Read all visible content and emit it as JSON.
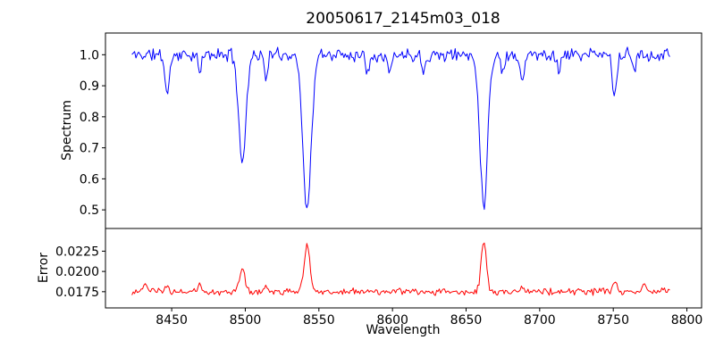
{
  "figure": {
    "background_color": "#ffffff",
    "axes_color": "#000000",
    "grid": false,
    "legend": "none"
  },
  "chart_data": [
    {
      "type": "line",
      "title": "20050617_2145m03_018",
      "xlabel": "Wavelength",
      "ylabel": "Spectrum",
      "line_color": "#0000ff",
      "xlim": [
        8405,
        8810
      ],
      "ylim": [
        0.44,
        1.07
      ],
      "x_range": [
        8423,
        8789
      ],
      "sample_step": 0.9,
      "xticks": [
        8450,
        8500,
        8550,
        8600,
        8650,
        8700,
        8750,
        8800
      ],
      "xtick_labels": [
        "8450",
        "8500",
        "8550",
        "8600",
        "8650",
        "8700",
        "8750",
        "8800"
      ],
      "yticks": [
        0.5,
        0.6,
        0.7,
        0.8,
        0.9,
        1.0
      ],
      "ytick_labels": [
        "0.5",
        "0.6",
        "0.7",
        "0.8",
        "0.9",
        "1.0"
      ],
      "continuum": 1.0,
      "noise_amplitude": 0.026,
      "absorption_lines": [
        {
          "center": 8447,
          "depth": 0.12,
          "sigma": 1.6
        },
        {
          "center": 8469,
          "depth": 0.06,
          "sigma": 1.2
        },
        {
          "center": 8498,
          "depth": 0.35,
          "sigma": 2.4
        },
        {
          "center": 8514,
          "depth": 0.07,
          "sigma": 1.3
        },
        {
          "center": 8542,
          "depth": 0.5,
          "sigma": 2.8
        },
        {
          "center": 8583,
          "depth": 0.05,
          "sigma": 1.2
        },
        {
          "center": 8598,
          "depth": 0.06,
          "sigma": 1.3
        },
        {
          "center": 8621,
          "depth": 0.05,
          "sigma": 1.2
        },
        {
          "center": 8662,
          "depth": 0.48,
          "sigma": 2.6
        },
        {
          "center": 8675,
          "depth": 0.06,
          "sigma": 1.2
        },
        {
          "center": 8688,
          "depth": 0.08,
          "sigma": 1.4
        },
        {
          "center": 8713,
          "depth": 0.05,
          "sigma": 1.2
        },
        {
          "center": 8751,
          "depth": 0.13,
          "sigma": 1.5
        },
        {
          "center": 8764,
          "depth": 0.05,
          "sigma": 1.2
        }
      ]
    },
    {
      "type": "line",
      "title": "",
      "xlabel": "Wavelength",
      "ylabel": "Error",
      "line_color": "#ff0000",
      "xlim": [
        8405,
        8810
      ],
      "ylim": [
        0.0155,
        0.0253
      ],
      "x_range": [
        8423,
        8789
      ],
      "sample_step": 0.9,
      "yticks": [
        0.0175,
        0.02,
        0.0225
      ],
      "ytick_labels": [
        "0.0175",
        "0.0200",
        "0.0225"
      ],
      "baseline": 0.0175,
      "noise_amplitude": 0.0005,
      "peaks": [
        {
          "center": 8432,
          "height": 0.0009,
          "sigma": 1.5
        },
        {
          "center": 8447,
          "height": 0.0007,
          "sigma": 1.3
        },
        {
          "center": 8469,
          "height": 0.0009,
          "sigma": 1.0
        },
        {
          "center": 8498,
          "height": 0.0028,
          "sigma": 1.8
        },
        {
          "center": 8514,
          "height": 0.0007,
          "sigma": 1.2
        },
        {
          "center": 8542,
          "height": 0.0058,
          "sigma": 2.0
        },
        {
          "center": 8662,
          "height": 0.0061,
          "sigma": 1.8
        },
        {
          "center": 8688,
          "height": 0.0007,
          "sigma": 1.3
        },
        {
          "center": 8751,
          "height": 0.0012,
          "sigma": 1.4
        },
        {
          "center": 8771,
          "height": 0.001,
          "sigma": 1.4
        }
      ]
    }
  ]
}
